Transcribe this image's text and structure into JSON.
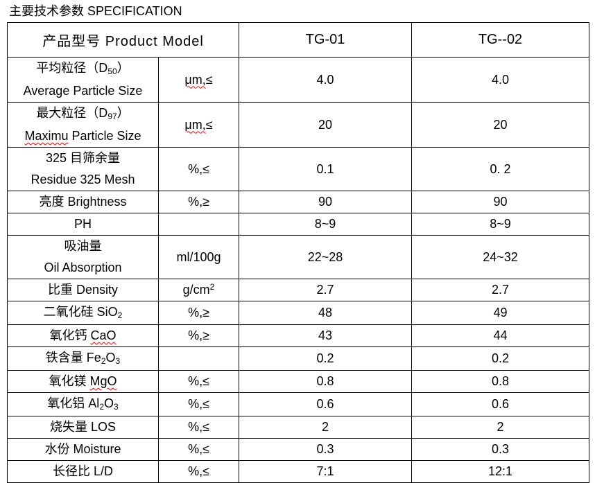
{
  "title": "主要技术参数 SPECIFICATION",
  "colors": {
    "text": "#000000",
    "table_border": "#000000",
    "spellcheck_underline": "#ff0000"
  },
  "table": {
    "header": {
      "model_label": "产品型号 Product Model",
      "tg01": "TG-01",
      "tg02": "TG--02"
    },
    "rows": [
      {
        "label_lines": [
          "平均粒径（D_{50}）",
          "Average Particle Size"
        ],
        "unit": "~~μm,~~≤",
        "tg01": "4.0",
        "tg02": "4.0"
      },
      {
        "label_lines": [
          "最大粒径（D_{97}）",
          "~~Maximu~~ Particle Size"
        ],
        "unit": "~~μm,~~≤",
        "tg01": "20",
        "tg02": "20"
      },
      {
        "label_lines": [
          "325 目筛余量",
          "Residue 325 Mesh"
        ],
        "unit": "%,≤",
        "tg01": "0.1",
        "tg02": "0. 2"
      },
      {
        "label_lines": [
          "亮度 Brightness"
        ],
        "unit": "%,≥",
        "tg01": "90",
        "tg02": "90"
      },
      {
        "label_lines": [
          "PH"
        ],
        "unit": "",
        "tg01": "8~9",
        "tg02": "8~9"
      },
      {
        "label_lines": [
          "吸油量",
          "Oil Absorption"
        ],
        "unit": "ml/100g",
        "tg01": "22~28",
        "tg02": "24~32"
      },
      {
        "label_lines": [
          "比重 Density"
        ],
        "unit": "g/cm^{2}",
        "tg01": "2.7",
        "tg02": "2.7"
      },
      {
        "label_lines": [
          "二氧化硅 SiO_{2}"
        ],
        "unit": "%,≥",
        "tg01": "48",
        "tg02": "49"
      },
      {
        "label_lines": [
          "氧化钙 ~~CaO~~"
        ],
        "unit": "%,≥",
        "tg01": "43",
        "tg02": "44"
      },
      {
        "label_lines": [
          "铁含量 Fe_{2}O_{3}"
        ],
        "unit": "",
        "tg01": "0.2",
        "tg02": "0.2"
      },
      {
        "label_lines": [
          "氧化镁 ~~MgO~~"
        ],
        "unit": "%,≤",
        "tg01": "0.8",
        "tg02": "0.8"
      },
      {
        "label_lines": [
          "氧化铝 Al_{2}O_{3}"
        ],
        "unit": "%,≤",
        "tg01": "0.6",
        "tg02": "0.6"
      },
      {
        "label_lines": [
          "烧失量 LOS"
        ],
        "unit": "%,≤",
        "tg01": "2",
        "tg02": "2"
      },
      {
        "label_lines": [
          "水份 Moisture"
        ],
        "unit": "%,≤",
        "tg01": "0.3",
        "tg02": "0.3"
      },
      {
        "label_lines": [
          "长径比 L/D"
        ],
        "unit": "%,≤",
        "tg01": "7:1",
        "tg02": "12:1"
      }
    ]
  }
}
